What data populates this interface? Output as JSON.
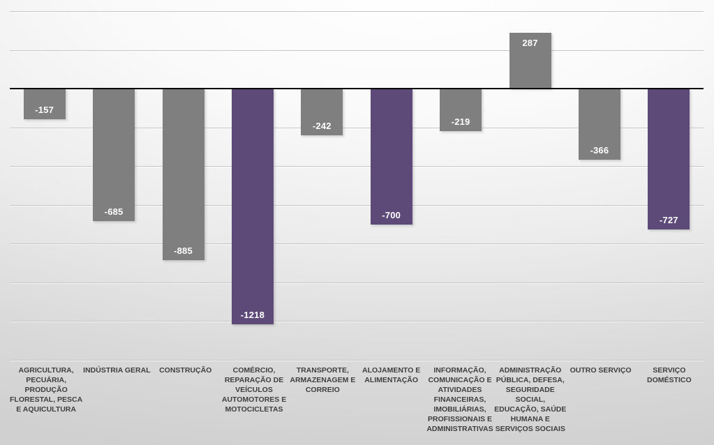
{
  "chart_data": {
    "type": "bar",
    "title": "",
    "xlabel": "",
    "ylabel": "",
    "legend_position": "none",
    "grid": true,
    "ylim": [
      -1400,
      400
    ],
    "gridline_step": 200,
    "categories": [
      "AGRICULTURA,\nPECUÁRIA,\nPRODUÇÃO\nFLORESTAL, PESCA\nE AQUICULTURA",
      "INDÚSTRIA GERAL",
      "CONSTRUÇÃO",
      "COMÉRCIO,\nREPARAÇÃO DE\nVEÍCULOS\nAUTOMOTORES E\nMOTOCICLETAS",
      "TRANSPORTE,\nARMAZENAGEM E\nCORREIO",
      "ALOJAMENTO E\nALIMENTAÇÃO",
      "INFORMAÇÃO,\nCOMUNICAÇÃO E\nATIVIDADES\nFINANCEIRAS,\nIMOBILIÁRIAS,\nPROFISSIONAIS E\nADMINISTRATIVAS",
      "ADMINISTRAÇÃO\nPÚBLICA, DEFESA,\nSEGURIDADE\nSOCIAL,\nEDUCAÇÃO, SAÚDE\nHUMANA E\nSERVIÇOS SOCIAIS",
      "OUTRO SERVIÇO",
      "SERVIÇO\nDOMÉSTICO"
    ],
    "values": [
      -157,
      -685,
      -885,
      -1218,
      -242,
      -700,
      -219,
      287,
      -366,
      -727
    ],
    "data_labels": [
      "-157",
      "-685",
      "-885",
      "-1218",
      "-242",
      "-700",
      "-219",
      "287",
      "-366",
      "-727"
    ],
    "highlight_indices": [
      3,
      5,
      9
    ],
    "colors": {
      "bar_default": "#7f7f7f",
      "bar_highlight": "#5d4a78",
      "zero_line": "#000000",
      "gridline": "#c5c5c5",
      "value_label_text": "#ffffff",
      "category_label_text": "#3f3f3f"
    }
  }
}
